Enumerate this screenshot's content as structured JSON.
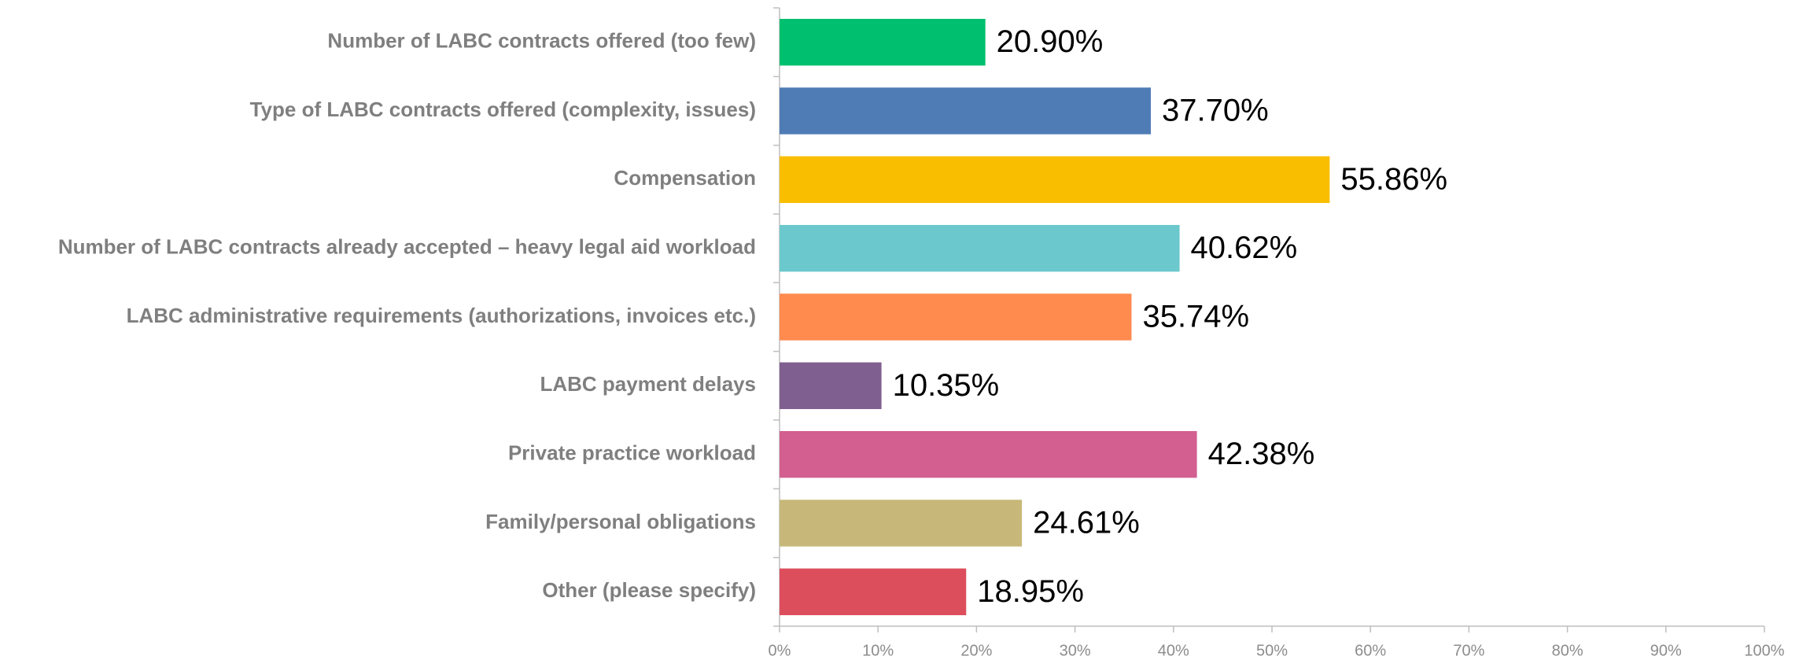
{
  "chart_data": {
    "type": "hbar",
    "categories": [
      "Number of LABC contracts offered (too few)",
      "Type of LABC contracts offered (complexity, issues)",
      "Compensation",
      "Number of LABC contracts already accepted – heavy legal aid workload",
      "LABC administrative requirements (authorizations, invoices etc.)",
      "LABC payment delays",
      "Private practice workload",
      "Family/personal obligations",
      "Other (please specify)"
    ],
    "values": [
      20.9,
      37.7,
      55.86,
      40.62,
      35.74,
      10.35,
      42.38,
      24.61,
      18.95
    ],
    "value_labels": [
      "20.90%",
      "37.70%",
      "55.86%",
      "40.62%",
      "35.74%",
      "10.35%",
      "42.38%",
      "24.61%",
      "18.95%"
    ],
    "colors": [
      "#00bf6f",
      "#507cb6",
      "#f9be00",
      "#6bc8cd",
      "#ff8b4f",
      "#7f5f90",
      "#d25f90",
      "#c7b879",
      "#dd4e5c"
    ],
    "xlim": [
      0,
      100
    ],
    "xticks": [
      {
        "value": 0,
        "label": "0%"
      },
      {
        "value": 10,
        "label": "10%"
      },
      {
        "value": 20,
        "label": "20%"
      },
      {
        "value": 30,
        "label": "30%"
      },
      {
        "value": 40,
        "label": "40%"
      },
      {
        "value": 50,
        "label": "50%"
      },
      {
        "value": 60,
        "label": "60%"
      },
      {
        "value": 70,
        "label": "70%"
      },
      {
        "value": 80,
        "label": "80%"
      },
      {
        "value": 90,
        "label": "90%"
      },
      {
        "value": 100,
        "label": "100%"
      }
    ]
  }
}
